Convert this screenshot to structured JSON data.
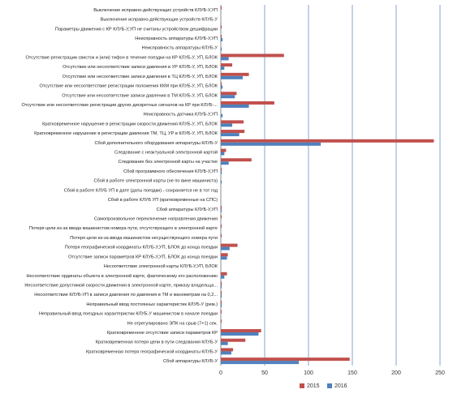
{
  "colors": {
    "s2015": "#c0504d",
    "s2016": "#4f81bd",
    "grid": "#4f81bd"
  },
  "chart_data": {
    "type": "bar",
    "orientation": "horizontal",
    "title": "",
    "xlabel": "",
    "ylabel": "",
    "xlim": [
      0,
      250
    ],
    "xticks": [
      "0",
      "50",
      "100",
      "150",
      "200",
      "250"
    ],
    "grid": true,
    "legend_position": "bottom",
    "categories": [
      "Выключение исправно-действующих устройств КЛУБ-У,УП",
      "Выключение исправно-действующих устройств КЛУБ-У",
      "Параметры движения с КР КЛУБ-У,УП не считаны устройством дешифрации",
      "Неисправность аппаратуры КЛУБ-У,УП",
      "Неисправность аппаратуры КЛУБ-У",
      "Отсутствие регистрации свисток и (или) тифон в течение поездки на КР КЛУБ-У, УП, БЛОК",
      "Отсутствие или несоответствие записи давления в УР КЛУБ-У, УП, БЛОК",
      "Отсутствие или несоответствие записи давления в ТЦ КЛУБ-У, УП, БЛОК",
      "Отсутствие или несоответствие регистрации положения ККМ при КЛУБ-У, УП, БЛОК",
      "Отсутствие или несоответствие записи давления в ТМ КЛУБ-У, УП, БЛОК",
      "Отсутствие или несоответствие регистрации других дискретных сигналов на КР при КЛУБ-...",
      "Неисправность датчика КЛУБ-У,УП",
      "Кратковременное нарушение в регистрации скорости движения КЛУБ-У, УП, БЛОК",
      "Кратковременное нарушение в регистрации давления ТМ, ТЦ, УР в КЛУБ-У, УП, БЛОК",
      "Сбой дополнительного оборудования аппаратуры КЛУБ-У",
      "Следование с неактуальной электронной картой",
      "Следование без электронной карты на участке",
      "Сбой программного обеспечения КЛУБ-У,УП",
      "Сбой в работе электронной карты (не по вине машиниста)",
      "Сбой в работе КЛУБ УП в дате (даты поездки) - сохраняется не в тот год",
      "Сбой в работе КЛУБ УП (кратковременные на СПС)",
      "Сбой аппаратуры КЛУБ-У,УП",
      "Самопроизвольное переключение направления движения",
      "Потеря цели из-за ввода машинистом номера пути, отсутствующего в электронной карте",
      "Потеря цели из-за ввода машинистом несуществующего номера пути",
      "Потеря географической координаты КЛУБ-У,УП, БЛОК до конца поездки",
      "Отсутствие записи параметров КР КЛУБ-У,УП, БЛОК до конца поездки",
      "Несоответствие электронной карты КЛУБ-У,УП, БЛОК",
      "Несоответствие ординаты объекта в электронной карте, фактическому его расположению",
      "Несоответствие допустимой скорости движения в электронной карте, приказу владельца...",
      "Несоответствие КЛУБ-УП в записи давления по давления в ТМ и манометрам на 0,2...",
      "Неправильный ввод постоянных характеристик КЛУБ-У (рем.)",
      "Неправильный ввод поездных характеристик КЛУБ-У машинистом в начале поездки",
      "Не отрегулировано ЭПК на срыв (7+1) сек.",
      "Кратковременное отсутствие записи параметров КР",
      "Кратковременная потеря цели в пути следования КЛУБ-У",
      "Кратковременная потеря географической координаты КЛУБ-У",
      "Сбой аппаратуры КЛУБ-У"
    ],
    "series": [
      {
        "name": "2015",
        "values": [
          1,
          0,
          1,
          1,
          0,
          72,
          13,
          32,
          1,
          18,
          61,
          0,
          26,
          27,
          243,
          6,
          35,
          1,
          0,
          0,
          0,
          1,
          1,
          1,
          1,
          19,
          8,
          0,
          7,
          1,
          1,
          1,
          1,
          1,
          46,
          28,
          14,
          147
        ]
      },
      {
        "name": "2016",
        "values": [
          0,
          0,
          0,
          2,
          1,
          9,
          4,
          25,
          2,
          16,
          32,
          2,
          13,
          21,
          114,
          4,
          9,
          1,
          1,
          0,
          0,
          1,
          0,
          0,
          0,
          10,
          7,
          0,
          4,
          1,
          1,
          1,
          0,
          0,
          43,
          8,
          12,
          89
        ]
      }
    ]
  }
}
